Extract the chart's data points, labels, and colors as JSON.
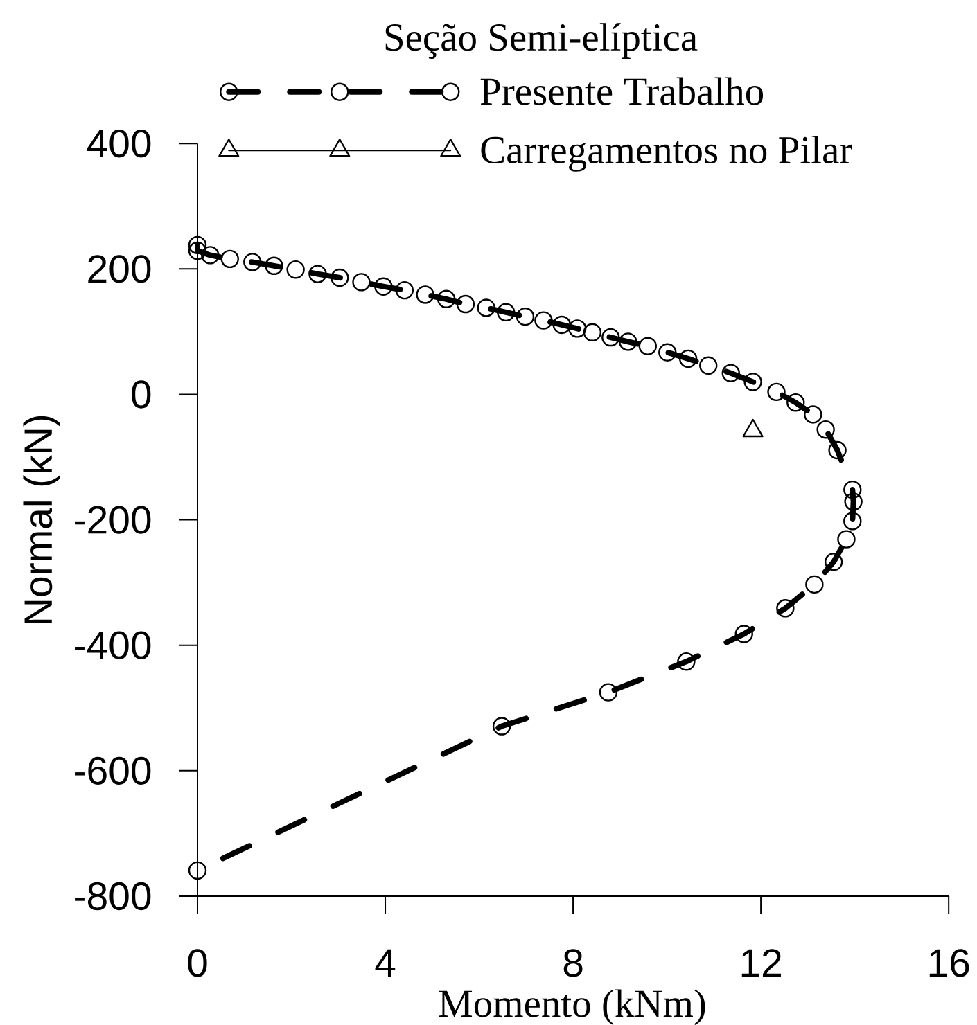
{
  "chart_data": {
    "type": "line",
    "title": "Seção Semi-elíptica",
    "xlabel": "Momento (kNm)",
    "ylabel": "Normal (kN)",
    "xlim": [
      0,
      16
    ],
    "xticks": [
      0,
      4,
      8,
      12,
      16
    ],
    "ylim": [
      -800,
      400
    ],
    "yticks": [
      -800,
      -600,
      -400,
      -200,
      0,
      200,
      400
    ],
    "legend": "top",
    "series": [
      {
        "name": "Presente Trabalho",
        "color": "#000000",
        "marker": "circle",
        "line_style": "dashed",
        "x": [
          0,
          0,
          0.27,
          0.69,
          1.17,
          1.63,
          2.09,
          2.56,
          3.03,
          3.49,
          3.96,
          4.41,
          4.85,
          5.3,
          5.71,
          6.15,
          6.57,
          6.98,
          7.37,
          7.76,
          8.09,
          8.41,
          8.8,
          9.17,
          9.59,
          10.01,
          10.45,
          10.88,
          11.36,
          11.83,
          12.33,
          12.74,
          13.11,
          13.38,
          13.63,
          13.95,
          13.97,
          13.95,
          13.82,
          13.55,
          13.14,
          12.52,
          11.64,
          10.41,
          8.75,
          6.48,
          0
        ],
        "values": [
          238,
          229,
          222,
          216,
          211,
          205,
          199,
          192,
          186,
          179,
          172,
          166,
          159,
          152,
          144,
          138,
          131,
          124,
          118,
          111,
          105,
          99,
          91,
          84,
          77,
          67,
          57,
          46,
          34,
          20,
          4,
          -13,
          -32,
          -56,
          -89,
          -152,
          -171,
          -202,
          -231,
          -267,
          -303,
          -341,
          -382,
          -426,
          -475,
          -529,
          -759
        ]
      },
      {
        "name": "Carregamentos no Pilar",
        "color": "#000000",
        "marker": "triangle",
        "line_style": "solid",
        "x": [
          11.83
        ],
        "values": [
          -58
        ]
      }
    ]
  }
}
